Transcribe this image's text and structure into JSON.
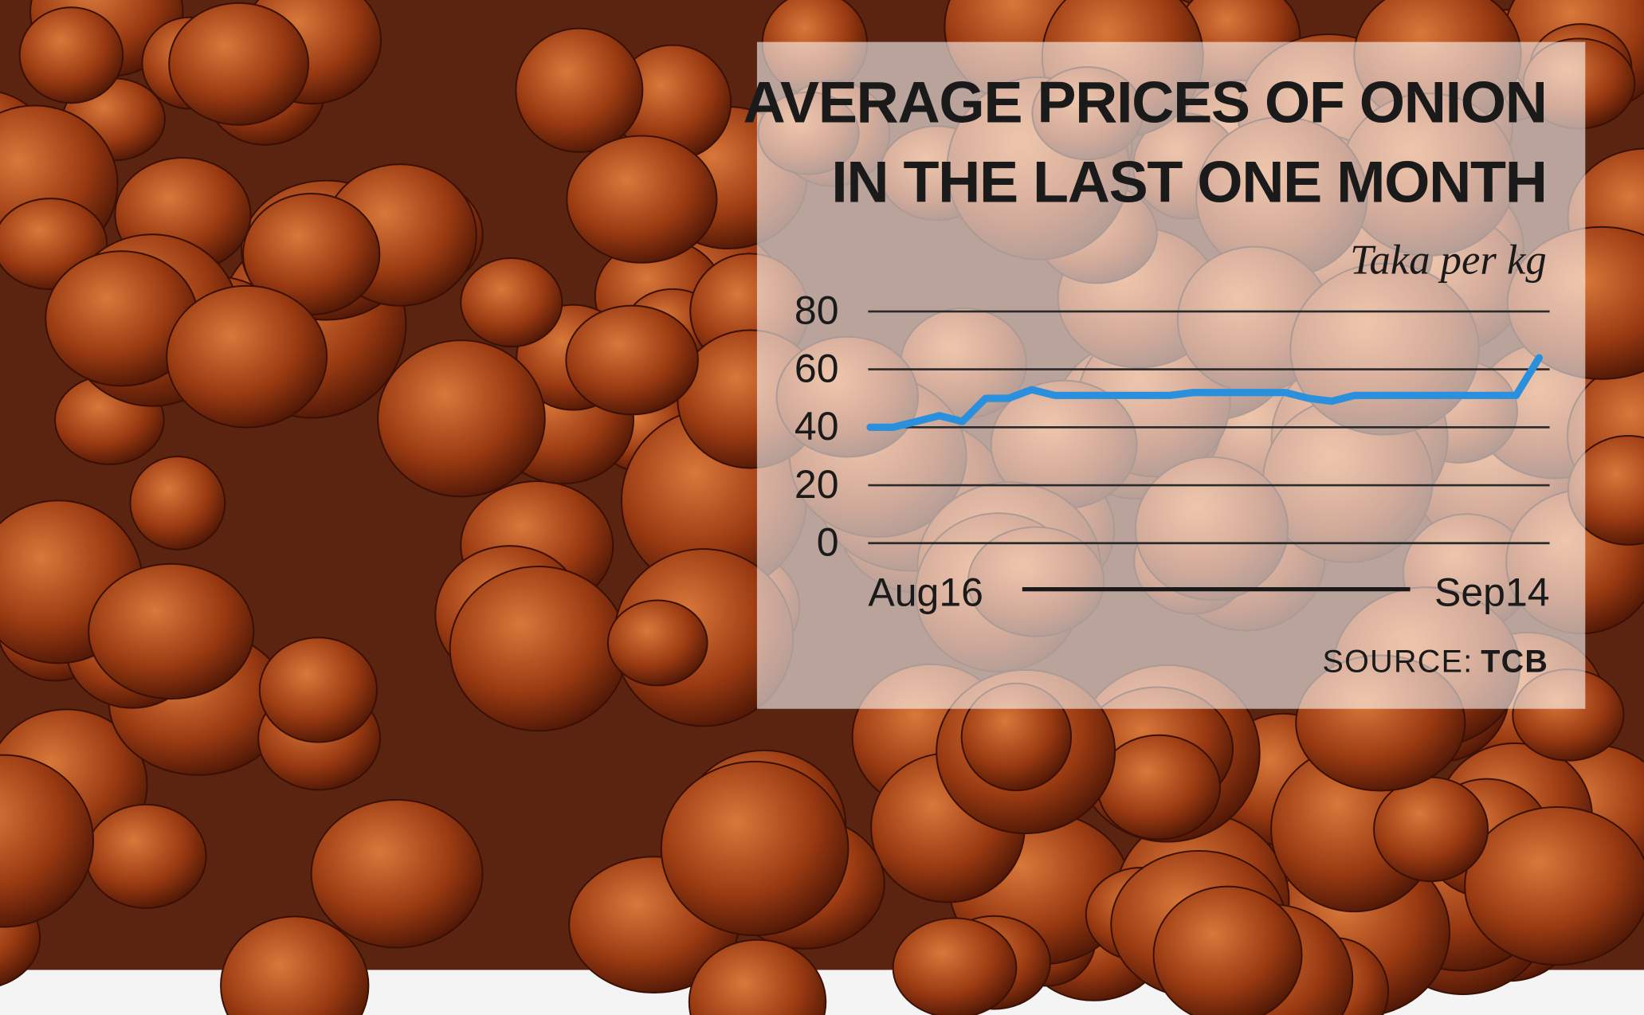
{
  "chart_data": {
    "type": "line",
    "title": [
      "AVERAGE PRICES OF ONION",
      "IN THE LAST ONE MONTH"
    ],
    "subtitle": "Taka per kg",
    "categories": [
      "Aug16",
      null,
      null,
      null,
      null,
      null,
      null,
      null,
      null,
      null,
      null,
      null,
      null,
      null,
      null,
      null,
      null,
      null,
      null,
      null,
      null,
      null,
      null,
      null,
      null,
      null,
      null,
      null,
      null,
      "Sep14"
    ],
    "values": [
      40,
      40,
      42,
      44,
      42,
      50,
      50,
      53,
      51,
      51,
      51,
      51,
      51,
      51,
      52,
      52,
      52,
      52,
      52,
      50,
      49,
      51,
      51,
      51,
      51,
      51,
      51,
      51,
      51,
      64
    ],
    "color": "#2a8fdc",
    "ylim": [
      0,
      80
    ],
    "yticks": [
      0,
      20,
      40,
      60,
      80
    ],
    "grid": true,
    "source_label": "SOURCE:",
    "source": "TCB"
  }
}
